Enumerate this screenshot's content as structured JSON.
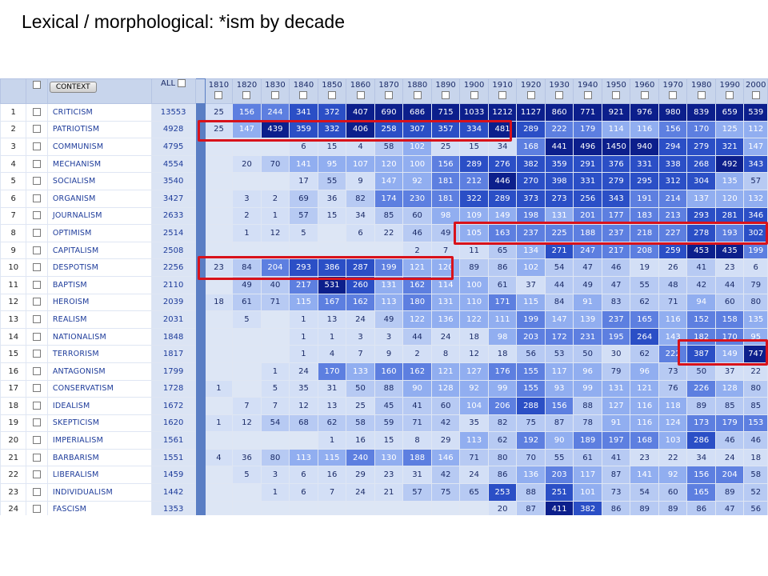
{
  "title": "Lexical / morphological:  *ism by decade",
  "header": {
    "context_label": "CONTEXT",
    "all_label": "ALL",
    "decades": [
      "1810",
      "1820",
      "1830",
      "1840",
      "1850",
      "1860",
      "1870",
      "1880",
      "1890",
      "1900",
      "1910",
      "1920",
      "1930",
      "1940",
      "1950",
      "1960",
      "1970",
      "1980",
      "1990",
      "2000"
    ]
  },
  "rows": [
    {
      "rank": "1",
      "word": "CRITICISM",
      "all": "13553",
      "v": [
        "25",
        "156",
        "244",
        "341",
        "372",
        "407",
        "690",
        "686",
        "715",
        "1033",
        "1212",
        "1127",
        "860",
        "771",
        "921",
        "976",
        "980",
        "839",
        "659",
        "539"
      ]
    },
    {
      "rank": "2",
      "word": "PATRIOTISM",
      "all": "4928",
      "v": [
        "25",
        "147",
        "439",
        "359",
        "332",
        "406",
        "258",
        "307",
        "357",
        "334",
        "481",
        "289",
        "222",
        "179",
        "114",
        "116",
        "156",
        "170",
        "125",
        "112"
      ]
    },
    {
      "rank": "3",
      "word": "COMMUNISM",
      "all": "4795",
      "v": [
        "",
        "",
        "",
        "6",
        "15",
        "4",
        "58",
        "102",
        "25",
        "15",
        "34",
        "168",
        "441",
        "496",
        "1450",
        "940",
        "294",
        "279",
        "321",
        "147"
      ]
    },
    {
      "rank": "4",
      "word": "MECHANISM",
      "all": "4554",
      "v": [
        "",
        "20",
        "70",
        "141",
        "95",
        "107",
        "120",
        "100",
        "156",
        "289",
        "276",
        "382",
        "359",
        "291",
        "376",
        "331",
        "338",
        "268",
        "492",
        "343"
      ]
    },
    {
      "rank": "5",
      "word": "SOCIALISM",
      "all": "3540",
      "v": [
        "",
        "",
        "",
        "17",
        "55",
        "9",
        "147",
        "92",
        "181",
        "212",
        "446",
        "270",
        "398",
        "331",
        "279",
        "295",
        "312",
        "304",
        "135",
        "57"
      ]
    },
    {
      "rank": "6",
      "word": "ORGANISM",
      "all": "3427",
      "v": [
        "",
        "3",
        "2",
        "69",
        "36",
        "82",
        "174",
        "230",
        "181",
        "322",
        "289",
        "373",
        "273",
        "256",
        "343",
        "191",
        "214",
        "137",
        "120",
        "132"
      ]
    },
    {
      "rank": "7",
      "word": "JOURNALISM",
      "all": "2633",
      "v": [
        "",
        "2",
        "1",
        "57",
        "15",
        "34",
        "85",
        "60",
        "98",
        "109",
        "149",
        "198",
        "131",
        "201",
        "177",
        "183",
        "213",
        "293",
        "281",
        "346"
      ]
    },
    {
      "rank": "8",
      "word": "OPTIMISM",
      "all": "2514",
      "v": [
        "",
        "1",
        "12",
        "5",
        "",
        "6",
        "22",
        "46",
        "49",
        "105",
        "163",
        "237",
        "225",
        "188",
        "237",
        "218",
        "227",
        "278",
        "193",
        "302"
      ]
    },
    {
      "rank": "9",
      "word": "CAPITALISM",
      "all": "2508",
      "v": [
        "",
        "",
        "",
        "",
        "",
        "",
        "",
        "2",
        "7",
        "11",
        "65",
        "134",
        "271",
        "247",
        "217",
        "208",
        "259",
        "453",
        "435",
        "199"
      ]
    },
    {
      "rank": "10",
      "word": "DESPOTISM",
      "all": "2256",
      "v": [
        "23",
        "84",
        "204",
        "293",
        "386",
        "287",
        "199",
        "121",
        "120",
        "89",
        "86",
        "102",
        "54",
        "47",
        "46",
        "19",
        "26",
        "41",
        "23",
        "6"
      ]
    },
    {
      "rank": "11",
      "word": "BAPTISM",
      "all": "2110",
      "v": [
        "",
        "49",
        "40",
        "217",
        "531",
        "260",
        "131",
        "162",
        "114",
        "100",
        "61",
        "37",
        "44",
        "49",
        "47",
        "55",
        "48",
        "42",
        "44",
        "79"
      ]
    },
    {
      "rank": "12",
      "word": "HEROISM",
      "all": "2039",
      "v": [
        "18",
        "61",
        "71",
        "115",
        "167",
        "162",
        "113",
        "180",
        "131",
        "110",
        "171",
        "115",
        "84",
        "91",
        "83",
        "62",
        "71",
        "94",
        "60",
        "80"
      ]
    },
    {
      "rank": "13",
      "word": "REALISM",
      "all": "2031",
      "v": [
        "",
        "5",
        "",
        "1",
        "13",
        "24",
        "49",
        "122",
        "136",
        "122",
        "111",
        "199",
        "147",
        "139",
        "237",
        "165",
        "116",
        "152",
        "158",
        "135"
      ]
    },
    {
      "rank": "14",
      "word": "NATIONALISM",
      "all": "1848",
      "v": [
        "",
        "",
        "",
        "1",
        "1",
        "3",
        "3",
        "44",
        "24",
        "18",
        "98",
        "203",
        "172",
        "231",
        "195",
        "264",
        "143",
        "182",
        "170",
        "95"
      ]
    },
    {
      "rank": "15",
      "word": "TERRORISM",
      "all": "1817",
      "v": [
        "",
        "",
        "",
        "1",
        "4",
        "7",
        "9",
        "2",
        "8",
        "12",
        "18",
        "56",
        "53",
        "50",
        "30",
        "62",
        "222",
        "387",
        "149",
        "747"
      ]
    },
    {
      "rank": "16",
      "word": "ANTAGONISM",
      "all": "1799",
      "v": [
        "",
        "",
        "1",
        "24",
        "170",
        "133",
        "160",
        "162",
        "121",
        "127",
        "176",
        "155",
        "117",
        "96",
        "79",
        "96",
        "73",
        "50",
        "37",
        "22"
      ]
    },
    {
      "rank": "17",
      "word": "CONSERVATISM",
      "all": "1728",
      "v": [
        "1",
        "",
        "5",
        "35",
        "31",
        "50",
        "88",
        "90",
        "128",
        "92",
        "99",
        "155",
        "93",
        "99",
        "131",
        "121",
        "76",
        "226",
        "128",
        "80"
      ]
    },
    {
      "rank": "18",
      "word": "IDEALISM",
      "all": "1672",
      "v": [
        "",
        "7",
        "7",
        "12",
        "13",
        "25",
        "45",
        "41",
        "60",
        "104",
        "206",
        "288",
        "156",
        "88",
        "127",
        "116",
        "118",
        "89",
        "85",
        "85"
      ]
    },
    {
      "rank": "19",
      "word": "SKEPTICISM",
      "all": "1620",
      "v": [
        "1",
        "12",
        "54",
        "68",
        "62",
        "58",
        "59",
        "71",
        "42",
        "35",
        "82",
        "75",
        "87",
        "78",
        "91",
        "116",
        "124",
        "173",
        "179",
        "153"
      ]
    },
    {
      "rank": "20",
      "word": "IMPERIALISM",
      "all": "1561",
      "v": [
        "",
        "",
        "",
        "",
        "1",
        "16",
        "15",
        "8",
        "29",
        "113",
        "62",
        "192",
        "90",
        "189",
        "197",
        "168",
        "103",
        "286",
        "46",
        "46"
      ]
    },
    {
      "rank": "21",
      "word": "BARBARISM",
      "all": "1551",
      "v": [
        "4",
        "36",
        "80",
        "113",
        "115",
        "240",
        "130",
        "188",
        "146",
        "71",
        "80",
        "70",
        "55",
        "61",
        "41",
        "23",
        "22",
        "34",
        "24",
        "18"
      ]
    },
    {
      "rank": "22",
      "word": "LIBERALISM",
      "all": "1459",
      "v": [
        "",
        "5",
        "3",
        "6",
        "16",
        "29",
        "23",
        "31",
        "42",
        "24",
        "86",
        "136",
        "203",
        "117",
        "87",
        "141",
        "92",
        "156",
        "204",
        "58"
      ]
    },
    {
      "rank": "23",
      "word": "INDIVIDUALISM",
      "all": "1442",
      "v": [
        "",
        "",
        "1",
        "6",
        "7",
        "24",
        "21",
        "57",
        "75",
        "65",
        "253",
        "88",
        "251",
        "101",
        "73",
        "54",
        "60",
        "165",
        "89",
        "52"
      ]
    },
    {
      "rank": "24",
      "word": "FASCISM",
      "all": "1353",
      "v": [
        "",
        "",
        "",
        "",
        "",
        "",
        "",
        "",
        "",
        "",
        "20",
        "87",
        "411",
        "382",
        "86",
        "89",
        "89",
        "86",
        "47",
        "56"
      ]
    }
  ],
  "colors": {
    "highlight": "#d8121b",
    "header_bg": "#c8d5ec",
    "separator": "#5a7ec4",
    "link_text": "#1d3b9a"
  }
}
